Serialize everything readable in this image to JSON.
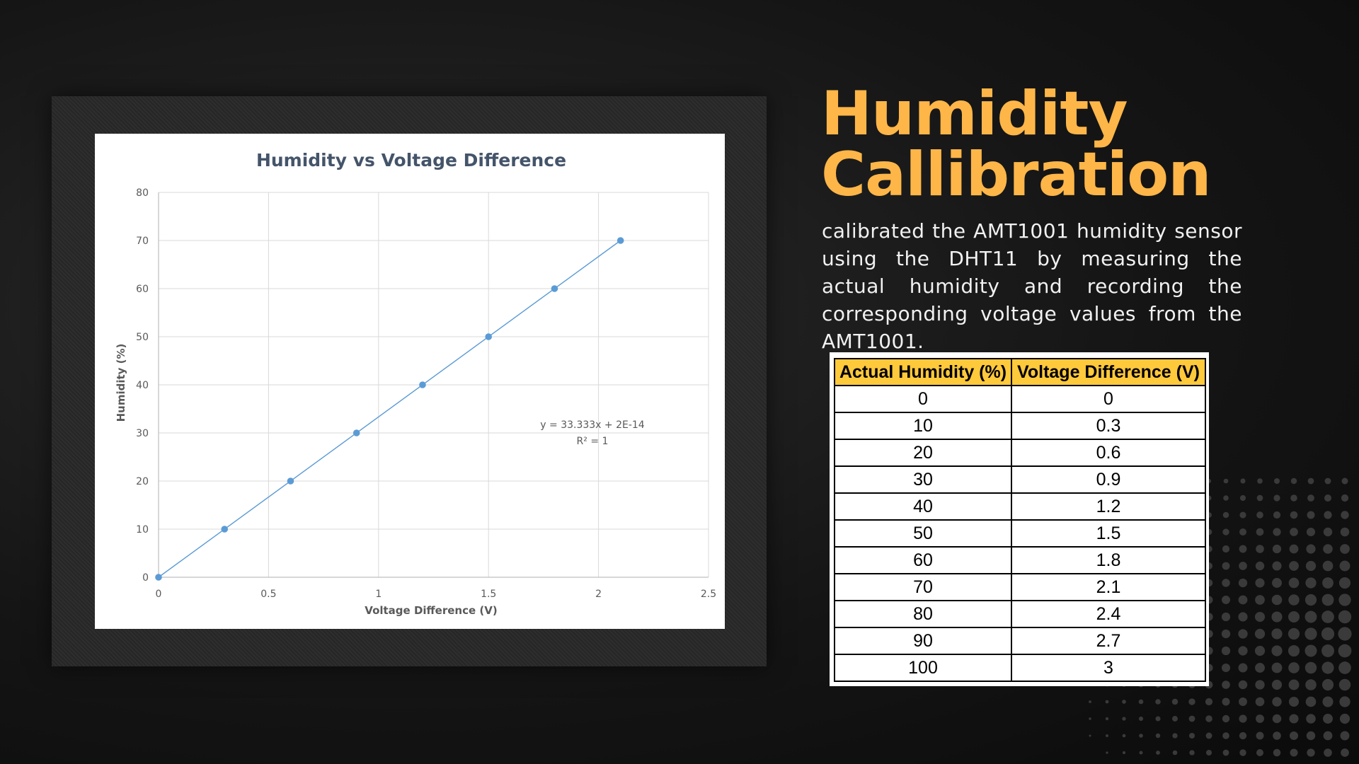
{
  "slide": {
    "title_line1": "Humidity",
    "title_line2": "Callibration",
    "description": "calibrated the AMT1001 humidity sensor using the DHT11 by measuring the actual humidity and recording the corresponding voltage values from the AMT1001.",
    "colors": {
      "accent": "#ffb648",
      "table_header": "#ffc93c",
      "series": "#5b9bd5"
    }
  },
  "table": {
    "headers": [
      "Actual Humidity (%)",
      "Voltage Difference (V)"
    ],
    "rows": [
      [
        "0",
        "0"
      ],
      [
        "10",
        "0.3"
      ],
      [
        "20",
        "0.6"
      ],
      [
        "30",
        "0.9"
      ],
      [
        "40",
        "1.2"
      ],
      [
        "50",
        "1.5"
      ],
      [
        "60",
        "1.8"
      ],
      [
        "70",
        "2.1"
      ],
      [
        "80",
        "2.4"
      ],
      [
        "90",
        "2.7"
      ],
      [
        "100",
        "3"
      ]
    ]
  },
  "chart_data": {
    "type": "scatter",
    "title": "Humidity vs Voltage Difference",
    "xlabel": "Voltage Difference (V)",
    "ylabel": "Humidity (%)",
    "xlim": [
      0,
      2.5
    ],
    "ylim": [
      0,
      80
    ],
    "xticks": [
      "0",
      "0.5",
      "1",
      "1.5",
      "2",
      "2.5"
    ],
    "yticks": [
      "0",
      "10",
      "20",
      "30",
      "40",
      "50",
      "60",
      "70",
      "80"
    ],
    "grid": true,
    "series": [
      {
        "x": [
          0,
          0.3,
          0.6,
          0.9,
          1.2,
          1.5,
          1.8,
          2.1
        ],
        "y": [
          0,
          10,
          20,
          30,
          40,
          50,
          60,
          70
        ]
      }
    ],
    "trendline": {
      "type": "linear",
      "x_range": [
        0,
        2.1
      ]
    },
    "annotations": [
      "y = 33.333x + 2E-14",
      "R² = 1"
    ]
  }
}
